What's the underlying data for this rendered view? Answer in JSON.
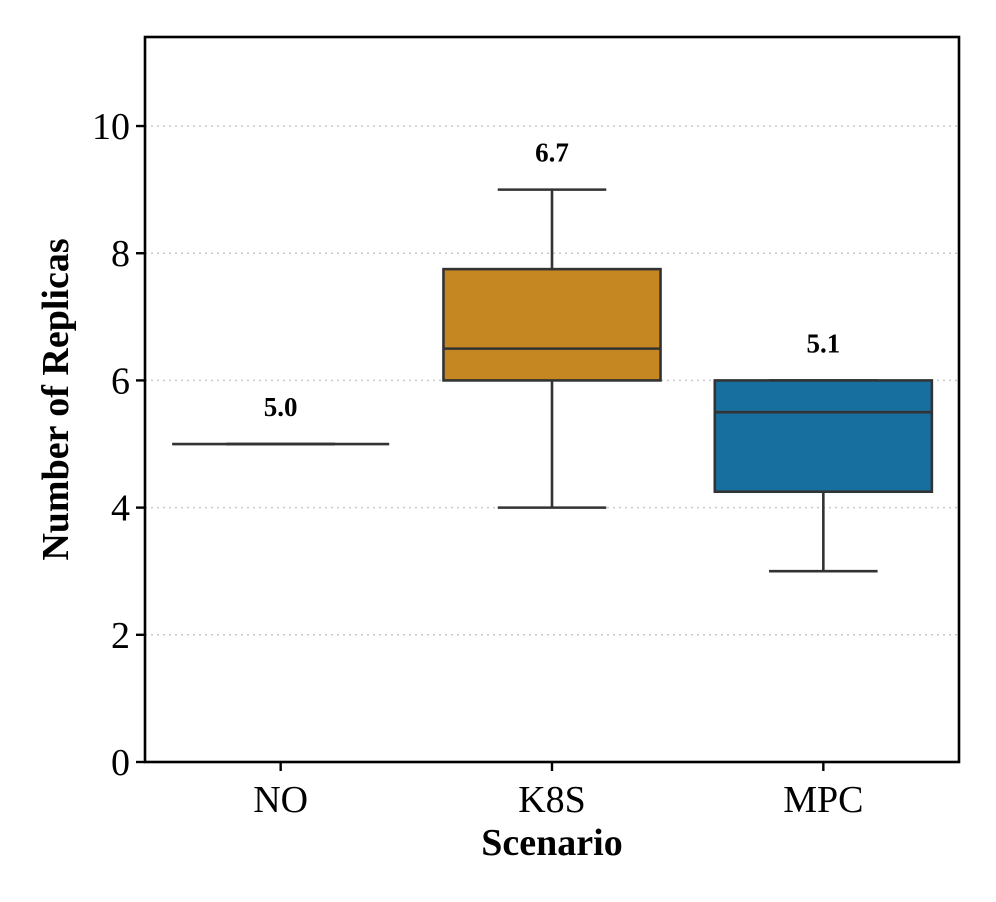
{
  "chart_data": {
    "type": "box",
    "title": "",
    "xlabel": "Scenario",
    "ylabel": "Number of Replicas",
    "ylim": [
      0,
      11.4
    ],
    "yticks": [
      0,
      2,
      4,
      6,
      8,
      10
    ],
    "ytick_labels": [
      "0",
      "2",
      "4",
      "6",
      "8",
      "10"
    ],
    "grid": "horizontal dotted",
    "categories": [
      "NO",
      "K8S",
      "MPC"
    ],
    "series": [
      {
        "name": "NO",
        "color": "#444444",
        "whisker_low": 5,
        "q1": 5,
        "median": 5,
        "q3": 5,
        "whisker_high": 5,
        "mean": 5.0,
        "mean_label": "5.0"
      },
      {
        "name": "K8S",
        "color": "#C48721",
        "whisker_low": 4,
        "q1": 6,
        "median": 6.5,
        "q3": 7.75,
        "whisker_high": 9,
        "mean": 6.7,
        "mean_label": "6.7"
      },
      {
        "name": "MPC",
        "color": "#176FA0",
        "whisker_low": 3,
        "q1": 4.25,
        "median": 5.5,
        "q3": 6,
        "whisker_high": 6,
        "mean": 5.1,
        "mean_label": "5.1"
      }
    ]
  }
}
